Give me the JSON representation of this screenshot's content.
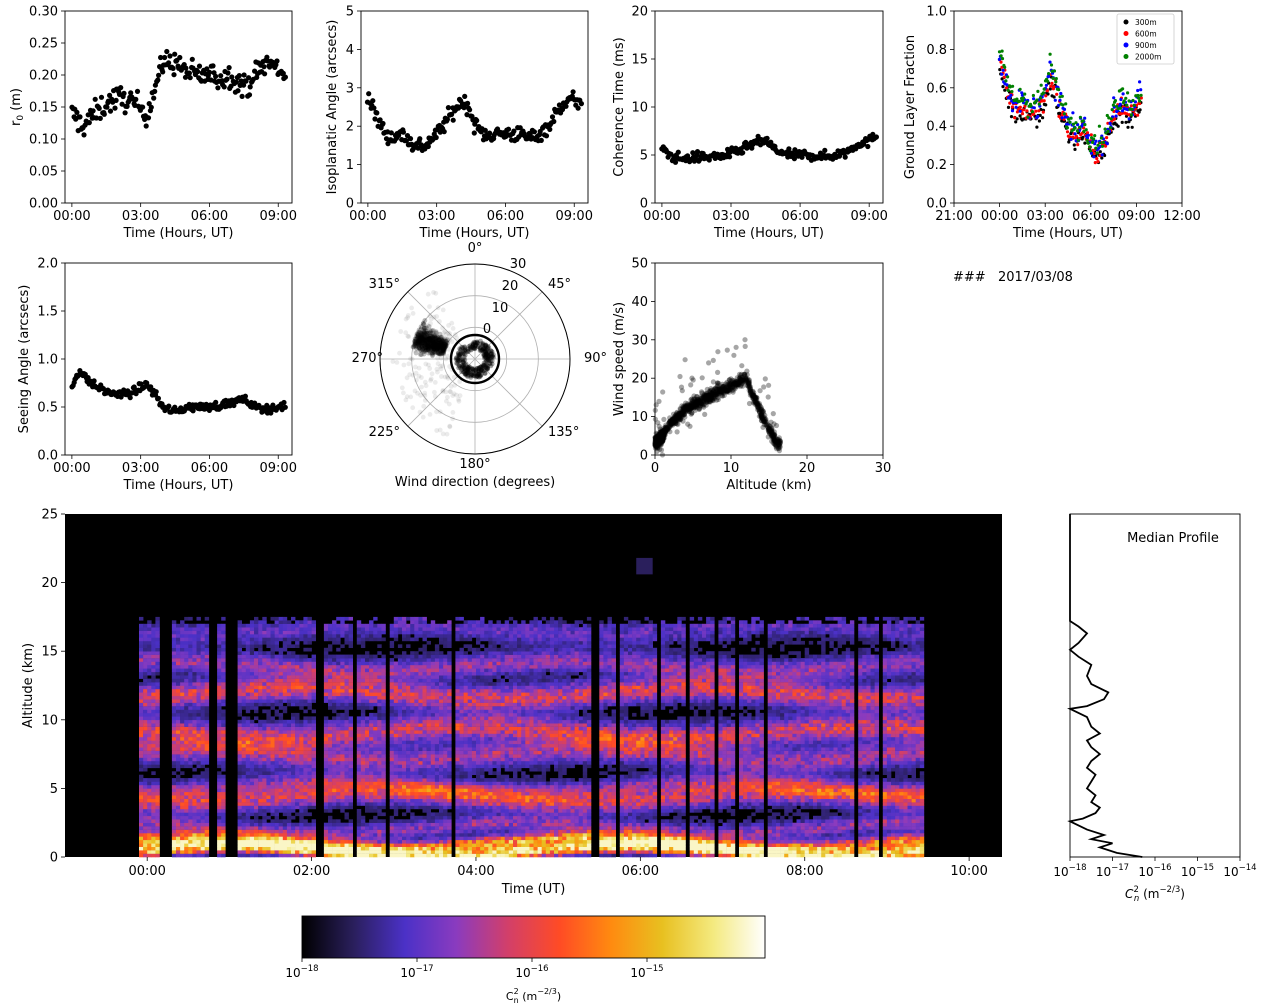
{
  "date_label": "2017/03/08",
  "date_prefix": "###",
  "chart_data": [
    {
      "id": "r0",
      "type": "scatter",
      "title": "",
      "xlabel": "Time (Hours, UT)",
      "ylabel": "r0 (m)",
      "ylabel_main": "r",
      "ylabel_sub": "0",
      "ylabel_tail": " (m)",
      "xlim": [
        -0.3,
        9.6
      ],
      "ylim": [
        0,
        0.3
      ],
      "xticks": [
        0,
        3,
        6,
        9
      ],
      "xticklabels": [
        "00:00",
        "03:00",
        "06:00",
        "09:00"
      ],
      "yticks": [
        0,
        0.05,
        0.1,
        0.15,
        0.2,
        0.25,
        0.3
      ],
      "yticklabels": [
        "0.00",
        "0.05",
        "0.10",
        "0.15",
        "0.20",
        "0.25",
        "0.30"
      ],
      "trend": [
        [
          0,
          0.14
        ],
        [
          0.5,
          0.12
        ],
        [
          1,
          0.14
        ],
        [
          1.5,
          0.155
        ],
        [
          2,
          0.165
        ],
        [
          2.5,
          0.16
        ],
        [
          3,
          0.15
        ],
        [
          3.3,
          0.14
        ],
        [
          3.7,
          0.19
        ],
        [
          4,
          0.22
        ],
        [
          4.5,
          0.22
        ],
        [
          5,
          0.205
        ],
        [
          5.5,
          0.2
        ],
        [
          6,
          0.2
        ],
        [
          6.5,
          0.195
        ],
        [
          7,
          0.2
        ],
        [
          7.5,
          0.18
        ],
        [
          8,
          0.2
        ],
        [
          8.5,
          0.22
        ],
        [
          9,
          0.21
        ],
        [
          9.3,
          0.2
        ]
      ],
      "spread": 0.018,
      "n": 210
    },
    {
      "id": "isoplanatic",
      "type": "scatter",
      "title": "",
      "xlabel": "Time (Hours, UT)",
      "ylabel": "Isoplanatic Angle (arcsecs)",
      "xlim": [
        -0.3,
        9.6
      ],
      "ylim": [
        0,
        5
      ],
      "xticks": [
        0,
        3,
        6,
        9
      ],
      "xticklabels": [
        "00:00",
        "03:00",
        "06:00",
        "09:00"
      ],
      "yticks": [
        0,
        1,
        2,
        3,
        4,
        5
      ],
      "yticklabels": [
        "0",
        "1",
        "2",
        "3",
        "4",
        "5"
      ],
      "trend": [
        [
          0,
          2.8
        ],
        [
          0.3,
          2.3
        ],
        [
          0.7,
          1.9
        ],
        [
          1,
          1.7
        ],
        [
          1.5,
          1.8
        ],
        [
          2,
          1.5
        ],
        [
          2.5,
          1.5
        ],
        [
          3,
          1.8
        ],
        [
          3.5,
          2.2
        ],
        [
          4,
          2.6
        ],
        [
          4.3,
          2.6
        ],
        [
          4.7,
          2.0
        ],
        [
          5,
          1.8
        ],
        [
          5.5,
          1.8
        ],
        [
          6,
          1.8
        ],
        [
          6.5,
          1.8
        ],
        [
          7,
          1.7
        ],
        [
          7.5,
          1.8
        ],
        [
          8,
          2.1
        ],
        [
          8.5,
          2.6
        ],
        [
          9,
          2.7
        ],
        [
          9.3,
          2.6
        ]
      ],
      "spread": 0.2,
      "n": 210
    },
    {
      "id": "coherence",
      "type": "scatter",
      "title": "",
      "xlabel": "Time (Hours, UT)",
      "ylabel": "Coherence Time (ms)",
      "xlim": [
        -0.3,
        9.6
      ],
      "ylim": [
        0,
        20
      ],
      "xticks": [
        0,
        3,
        6,
        9
      ],
      "xticklabels": [
        "00:00",
        "03:00",
        "06:00",
        "09:00"
      ],
      "yticks": [
        0,
        5,
        10,
        15,
        20
      ],
      "yticklabels": [
        "0",
        "5",
        "10",
        "15",
        "20"
      ],
      "trend": [
        [
          0,
          5.5
        ],
        [
          0.5,
          4.8
        ],
        [
          1,
          4.6
        ],
        [
          1.5,
          4.8
        ],
        [
          2,
          4.8
        ],
        [
          2.5,
          4.9
        ],
        [
          3,
          5.1
        ],
        [
          3.5,
          5.6
        ],
        [
          4,
          6.2
        ],
        [
          4.5,
          6.5
        ],
        [
          5,
          5.4
        ],
        [
          5.5,
          5.0
        ],
        [
          6,
          5.0
        ],
        [
          6.5,
          5.0
        ],
        [
          7,
          4.8
        ],
        [
          7.5,
          5.0
        ],
        [
          8,
          5.3
        ],
        [
          8.5,
          6.2
        ],
        [
          9,
          6.4
        ],
        [
          9.3,
          7.0
        ]
      ],
      "spread": 0.5,
      "n": 210
    },
    {
      "id": "glf",
      "type": "scatter",
      "title": "",
      "xlabel": "Time (Hours, UT)",
      "ylabel": "Ground Layer Fraction",
      "xlim": [
        -3,
        12
      ],
      "ylim": [
        0,
        1
      ],
      "xticks": [
        -3,
        0,
        3,
        6,
        9,
        12
      ],
      "xticklabels": [
        "21:00",
        "00:00",
        "03:00",
        "06:00",
        "09:00",
        "12:00"
      ],
      "yticks": [
        0,
        0.2,
        0.4,
        0.6,
        0.8,
        1.0
      ],
      "yticklabels": [
        "0.0",
        "0.2",
        "0.4",
        "0.6",
        "0.8",
        "1.0"
      ],
      "legend_position": "top-right",
      "trend": [
        [
          0,
          0.75
        ],
        [
          0.5,
          0.6
        ],
        [
          1,
          0.5
        ],
        [
          1.5,
          0.52
        ],
        [
          2,
          0.48
        ],
        [
          2.5,
          0.5
        ],
        [
          3,
          0.55
        ],
        [
          3.3,
          0.68
        ],
        [
          3.7,
          0.6
        ],
        [
          4,
          0.5
        ],
        [
          4.5,
          0.4
        ],
        [
          5,
          0.35
        ],
        [
          5.5,
          0.4
        ],
        [
          6,
          0.3
        ],
        [
          6.5,
          0.28
        ],
        [
          7,
          0.35
        ],
        [
          7.5,
          0.45
        ],
        [
          8,
          0.52
        ],
        [
          8.5,
          0.48
        ],
        [
          9,
          0.52
        ],
        [
          9.3,
          0.55
        ]
      ],
      "spread": 0.06,
      "n": 130,
      "series": [
        {
          "name": "300m",
          "color": "#000000",
          "offset": -0.04
        },
        {
          "name": "600m",
          "color": "#ff0000",
          "offset": -0.015
        },
        {
          "name": "900m",
          "color": "#0000ff",
          "offset": 0.01
        },
        {
          "name": "2000m",
          "color": "#008000",
          "offset": 0.035
        }
      ]
    },
    {
      "id": "seeing",
      "type": "scatter",
      "title": "",
      "xlabel": "Time (Hours, UT)",
      "ylabel": "Seeing Angle (arcsecs)",
      "xlim": [
        -0.3,
        9.6
      ],
      "ylim": [
        0,
        2
      ],
      "xticks": [
        0,
        3,
        6,
        9
      ],
      "xticklabels": [
        "00:00",
        "03:00",
        "06:00",
        "09:00"
      ],
      "yticks": [
        0,
        0.5,
        1.0,
        1.5,
        2.0
      ],
      "yticklabels": [
        "0.0",
        "0.5",
        "1.0",
        "1.5",
        "2.0"
      ],
      "trend": [
        [
          0,
          0.72
        ],
        [
          0.3,
          0.88
        ],
        [
          0.7,
          0.78
        ],
        [
          1,
          0.72
        ],
        [
          1.5,
          0.66
        ],
        [
          2,
          0.63
        ],
        [
          2.5,
          0.64
        ],
        [
          3,
          0.7
        ],
        [
          3.3,
          0.74
        ],
        [
          3.7,
          0.6
        ],
        [
          4,
          0.5
        ],
        [
          4.5,
          0.45
        ],
        [
          5,
          0.5
        ],
        [
          5.5,
          0.5
        ],
        [
          6,
          0.5
        ],
        [
          6.5,
          0.52
        ],
        [
          7,
          0.55
        ],
        [
          7.5,
          0.58
        ],
        [
          8,
          0.5
        ],
        [
          8.5,
          0.48
        ],
        [
          9,
          0.5
        ],
        [
          9.3,
          0.5
        ]
      ],
      "spread": 0.04,
      "n": 210
    },
    {
      "id": "winddir",
      "type": "scatter",
      "title": "",
      "xlabel": "Wind direction (degrees)",
      "rlim": [
        0,
        30
      ],
      "rticks": [
        0,
        10,
        20,
        30
      ],
      "rticklabels": [
        "0",
        "10",
        "20",
        "30"
      ],
      "angle_labels": [
        "0°",
        "45°",
        "90°",
        "135°",
        "180°",
        "225°",
        "270°",
        "315°"
      ]
    },
    {
      "id": "windspeed",
      "type": "scatter",
      "title": "",
      "xlabel": "Altitude (km)",
      "ylabel": "Wind speed (m/s)",
      "xlim": [
        0,
        30
      ],
      "ylim": [
        0,
        50
      ],
      "xticks": [
        0,
        10,
        20,
        30
      ],
      "xticklabels": [
        "0",
        "10",
        "20",
        "30"
      ],
      "yticks": [
        0,
        10,
        20,
        30,
        40,
        50
      ],
      "yticklabels": [
        "0",
        "10",
        "20",
        "30",
        "40",
        "50"
      ],
      "trend": [
        [
          0,
          3
        ],
        [
          1,
          5
        ],
        [
          2,
          8
        ],
        [
          3,
          10
        ],
        [
          4,
          12
        ],
        [
          5,
          13
        ],
        [
          6,
          14
        ],
        [
          7,
          15
        ],
        [
          8,
          16
        ],
        [
          9,
          17
        ],
        [
          10,
          18
        ],
        [
          11,
          19
        ],
        [
          12,
          20
        ],
        [
          13,
          15
        ],
        [
          14,
          11
        ],
        [
          15,
          7
        ],
        [
          16,
          3
        ]
      ]
    },
    {
      "id": "heatmap",
      "type": "heatmap",
      "title": "",
      "xlabel": "Time (UT)",
      "ylabel": "Altitude (km)",
      "xlim": [
        -1,
        10.4
      ],
      "ylim": [
        0,
        25
      ],
      "xticks": [
        0,
        2,
        4,
        6,
        8,
        10
      ],
      "xticklabels": [
        "00:00",
        "02:00",
        "04:00",
        "06:00",
        "08:00",
        "10:00"
      ],
      "yticks": [
        0,
        5,
        10,
        15,
        20,
        25
      ],
      "yticklabels": [
        "0",
        "5",
        "10",
        "15",
        "20",
        "25"
      ],
      "data_time_range": [
        -0.1,
        9.45
      ],
      "data_top_altitude": 17.5,
      "gaps_hours": [
        0.15,
        0.3,
        0.72,
        0.82,
        0.95,
        1.1,
        2.05,
        2.12,
        2.45,
        2.5,
        2.85,
        2.9,
        3.68,
        3.72,
        5.35,
        5.45,
        5.65,
        5.72,
        6.15,
        6.2,
        6.52,
        6.58,
        6.85,
        6.9,
        7.1,
        7.15,
        7.45,
        7.5,
        8.55,
        8.62,
        8.85,
        8.9
      ],
      "layers": [
        {
          "alt": 0.3,
          "width": 0.5,
          "level": 2.6
        },
        {
          "alt": 0.9,
          "width": 0.5,
          "level": 1.9
        },
        {
          "alt": 2.0,
          "width": 0.6,
          "level": 0.9
        },
        {
          "alt": 4.2,
          "width": 0.8,
          "level": 1.2
        },
        {
          "alt": 5.0,
          "width": 0.7,
          "level": 0.8
        },
        {
          "alt": 7.3,
          "width": 0.9,
          "level": 1.0
        },
        {
          "alt": 9.0,
          "width": 0.9,
          "level": 1.3
        },
        {
          "alt": 11.8,
          "width": 0.9,
          "level": 1.3
        },
        {
          "alt": 13.8,
          "width": 0.8,
          "level": 0.9
        },
        {
          "alt": 16.5,
          "width": 0.9,
          "level": 0.6
        }
      ]
    },
    {
      "id": "median",
      "type": "line",
      "title": "Median Profile",
      "xlabel": "C_n^2 (m^-2/3)",
      "xlim_log": [
        -18,
        -14
      ],
      "ylim": [
        0,
        25
      ],
      "xticklabels": [
        "10",
        "10",
        "10",
        "10",
        "10"
      ],
      "xtickexps": [
        "−18",
        "−17",
        "−16",
        "−15",
        "−14"
      ],
      "profile": [
        [
          0,
          -16.3
        ],
        [
          0.3,
          -16.9
        ],
        [
          0.7,
          -17.3
        ],
        [
          1.0,
          -17.0
        ],
        [
          1.3,
          -17.5
        ],
        [
          1.6,
          -17.2
        ],
        [
          2.0,
          -17.6
        ],
        [
          2.3,
          -17.8
        ],
        [
          2.6,
          -18.0
        ],
        [
          2.8,
          -17.7
        ],
        [
          3.2,
          -17.4
        ],
        [
          3.6,
          -17.3
        ],
        [
          4.0,
          -17.5
        ],
        [
          4.5,
          -17.4
        ],
        [
          5.0,
          -17.6
        ],
        [
          5.5,
          -17.5
        ],
        [
          6.0,
          -17.4
        ],
        [
          6.5,
          -17.6
        ],
        [
          7.0,
          -17.5
        ],
        [
          7.5,
          -17.3
        ],
        [
          8.0,
          -17.5
        ],
        [
          8.5,
          -17.6
        ],
        [
          9.0,
          -17.3
        ],
        [
          9.5,
          -17.5
        ],
        [
          10.2,
          -17.6
        ],
        [
          10.8,
          -18.0
        ],
        [
          11.0,
          -17.6
        ],
        [
          11.5,
          -17.2
        ],
        [
          12.0,
          -17.1
        ],
        [
          12.6,
          -17.5
        ],
        [
          13.2,
          -17.6
        ],
        [
          14.0,
          -17.5
        ],
        [
          14.6,
          -17.8
        ],
        [
          15.1,
          -18.0
        ],
        [
          15.6,
          -17.8
        ],
        [
          16.3,
          -17.6
        ],
        [
          16.8,
          -17.8
        ],
        [
          17.2,
          -18.0
        ],
        [
          25,
          -18.0
        ]
      ]
    },
    {
      "id": "colorbar",
      "type": "heatmap",
      "title": "",
      "xlabel": "C_n^2 (m^-2/3)",
      "xticklabels": [
        "10",
        "10",
        "10",
        "10"
      ],
      "xtickexps": [
        "−18",
        "−17",
        "−16",
        "−15"
      ],
      "colors": [
        "#000000",
        "#2a1f5c",
        "#4b31c7",
        "#8a3bbf",
        "#d23f6a",
        "#ff4b25",
        "#ff8a10",
        "#e8c020",
        "#f4ea80",
        "#ffffff"
      ]
    }
  ]
}
